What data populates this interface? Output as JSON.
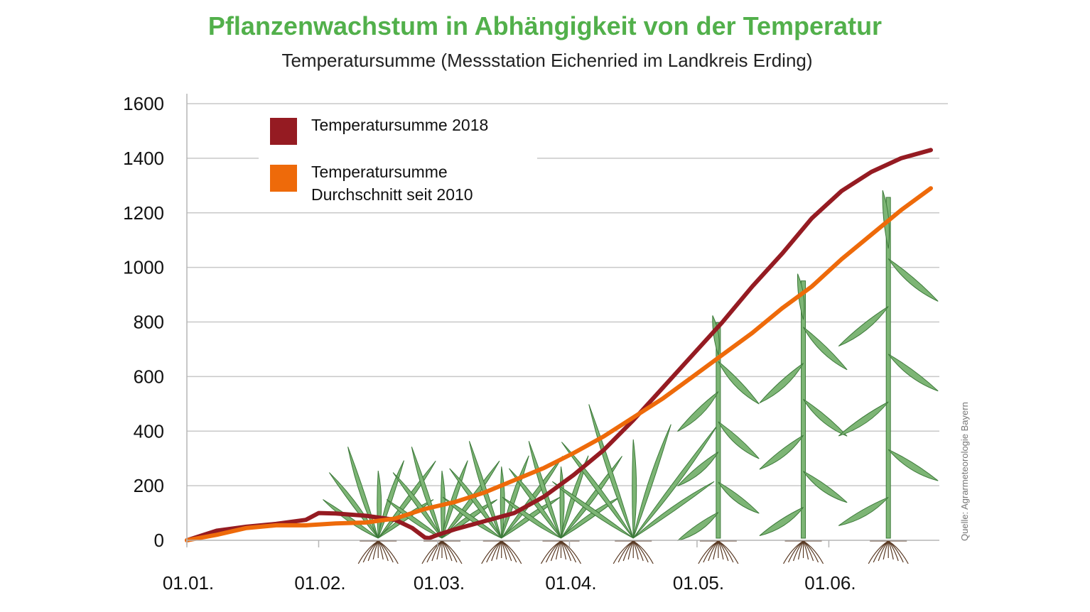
{
  "chart_data": {
    "type": "line",
    "title": "Pflanzenwachstum in Abhängigkeit von der Temperatur",
    "subtitle": "Temperatursumme (Messstation Eichenried im Landkreis Erding)",
    "xlabel": "",
    "ylabel": "",
    "ylim": [
      0,
      1600
    ],
    "yticks": [
      "0",
      "200",
      "400",
      "600",
      "800",
      "1000",
      "1200",
      "1400",
      "1600"
    ],
    "xticks": [
      "01.01.",
      "01.02.",
      "01.03.",
      "01.04.",
      "01.05.",
      "01.06."
    ],
    "x_unit": "day_of_year",
    "xlim": [
      1,
      178
    ],
    "grid": "horizontal",
    "legend_position": "top-left",
    "source": "Quelle: Agrarmeteorologie Bayern",
    "colors": {
      "s2018": "#951b22",
      "avg": "#ee6a0a",
      "plant": "#7db575",
      "plant_stroke": "#3d7a3a",
      "root": "#5a3a24"
    },
    "series": [
      {
        "name": "Temperatursumme 2018",
        "x": [
          1,
          8,
          15,
          22,
          29,
          32,
          36,
          43,
          50,
          54,
          57,
          58,
          60,
          64,
          71,
          78,
          85,
          92,
          99,
          106,
          113,
          120,
          127,
          134,
          141,
          148,
          155,
          162,
          169,
          176
        ],
        "y": [
          0,
          35,
          50,
          60,
          75,
          100,
          98,
          90,
          75,
          45,
          10,
          8,
          20,
          40,
          70,
          100,
          160,
          240,
          330,
          440,
          560,
          680,
          800,
          930,
          1050,
          1180,
          1280,
          1350,
          1400,
          1430
        ]
      },
      {
        "name": "Temperatursumme Durchschnitt seit 2010",
        "x": [
          1,
          8,
          15,
          22,
          29,
          36,
          43,
          50,
          57,
          64,
          71,
          78,
          85,
          92,
          99,
          106,
          113,
          120,
          127,
          134,
          141,
          148,
          155,
          162,
          169,
          176
        ],
        "y": [
          0,
          20,
          45,
          55,
          55,
          62,
          65,
          80,
          115,
          140,
          175,
          220,
          265,
          320,
          380,
          450,
          520,
          600,
          680,
          760,
          850,
          930,
          1030,
          1120,
          1210,
          1290
        ]
      }
    ],
    "legend": [
      {
        "series": 0,
        "lines": [
          "Temperatursumme 2018"
        ]
      },
      {
        "series": 1,
        "lines": [
          "Temperatursumme",
          "Durchschnitt seit 2010"
        ]
      }
    ],
    "plant_stages": [
      {
        "day": 46,
        "height": 0.18
      },
      {
        "day": 61,
        "height": 0.18
      },
      {
        "day": 75,
        "height": 0.2
      },
      {
        "day": 89,
        "height": 0.2
      },
      {
        "day": 106,
        "height": 0.33
      },
      {
        "day": 126,
        "height": 0.58
      },
      {
        "day": 146,
        "height": 0.72
      },
      {
        "day": 166,
        "height": 1.0
      }
    ]
  }
}
